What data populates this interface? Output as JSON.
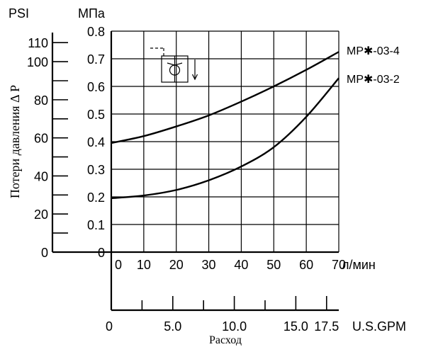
{
  "chart_data": {
    "type": "line",
    "title": "",
    "ylabel": "Потери давления Δ P",
    "xlabel": "Расход",
    "y_primary": {
      "unit": "МПа",
      "range": [
        0,
        0.8
      ],
      "ticks": [
        "0",
        "0.1",
        "0.2",
        "0.3",
        "0.4",
        "0.5",
        "0.6",
        "0.7",
        "0.8"
      ],
      "tick_values": [
        0,
        0.1,
        0.2,
        0.3,
        0.4,
        0.5,
        0.6,
        0.7,
        0.8
      ]
    },
    "y_secondary": {
      "unit": "PSI",
      "ticks": [
        "0",
        "20",
        "40",
        "60",
        "80",
        "100",
        "110"
      ],
      "tick_values": [
        0,
        20,
        40,
        60,
        80,
        100,
        110
      ]
    },
    "x_primary": {
      "unit": "л/мин",
      "range": [
        0,
        70
      ],
      "ticks": [
        "0",
        "10",
        "20",
        "30",
        "40",
        "50",
        "60",
        "70"
      ],
      "tick_values": [
        0,
        10,
        20,
        30,
        40,
        50,
        60,
        70
      ]
    },
    "x_secondary": {
      "unit": "U.S.GPM",
      "ticks": [
        "0",
        "5.0",
        "10.0",
        "15.0",
        "17.5"
      ],
      "tick_values": [
        0,
        5,
        10,
        15,
        17.5
      ],
      "minor_tick_values": [
        2.5,
        7.5,
        12.5
      ]
    },
    "grid": true,
    "series": [
      {
        "name": "MP✱-03-4",
        "x": [
          0,
          10,
          20,
          30,
          40,
          50,
          60,
          70
        ],
        "y": [
          0.395,
          0.42,
          0.455,
          0.495,
          0.545,
          0.6,
          0.66,
          0.725
        ]
      },
      {
        "name": "MP✱-03-2",
        "x": [
          0,
          10,
          20,
          30,
          40,
          50,
          60,
          70
        ],
        "y": [
          0.195,
          0.205,
          0.225,
          0.26,
          0.31,
          0.38,
          0.49,
          0.63
        ]
      }
    ]
  }
}
